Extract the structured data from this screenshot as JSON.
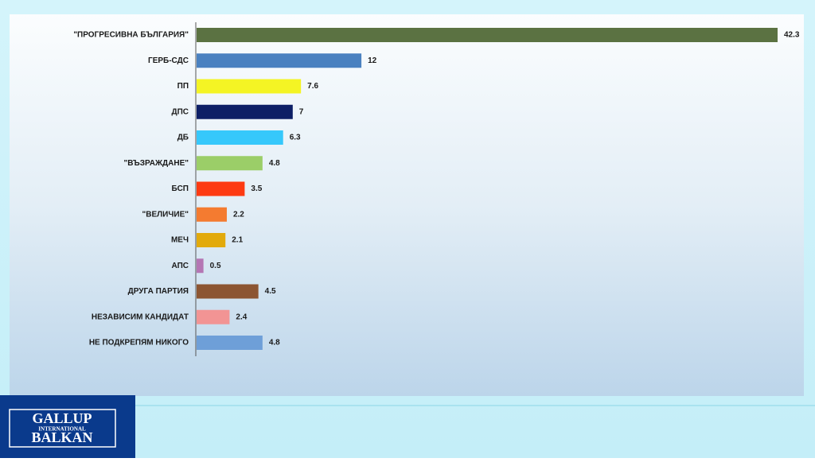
{
  "chart_data": {
    "type": "hbar",
    "categories": [
      "\"ПРОГРЕСИВНА БЪЛГАРИЯ\"",
      "ГЕРБ-СДС",
      "ПП",
      "ДПС",
      "ДБ",
      "\"ВЪЗРАЖДАНЕ\"",
      "БСП",
      "\"ВЕЛИЧИЕ\"",
      "МЕЧ",
      "АПС",
      "ДРУГА ПАРТИЯ",
      "НЕЗАВИСИМ КАНДИДАТ",
      "НЕ ПОДКРЕПЯМ НИКОГО"
    ],
    "values": [
      42.3,
      12,
      7.6,
      7,
      6.3,
      4.8,
      3.5,
      2.2,
      2.1,
      0.5,
      4.5,
      2.4,
      4.8
    ],
    "colors": [
      "#5b7242",
      "#4a81c0",
      "#f4f424",
      "#0d1f66",
      "#36c8fb",
      "#9bce68",
      "#fd3a12",
      "#f47b30",
      "#e2aa0c",
      "#b476b4",
      "#8c5532",
      "#f29494",
      "#6e9fd8"
    ]
  },
  "logo": {
    "line1": "GALLUP",
    "line2": "INTERNATIONAL",
    "line3": "BALKAN"
  }
}
